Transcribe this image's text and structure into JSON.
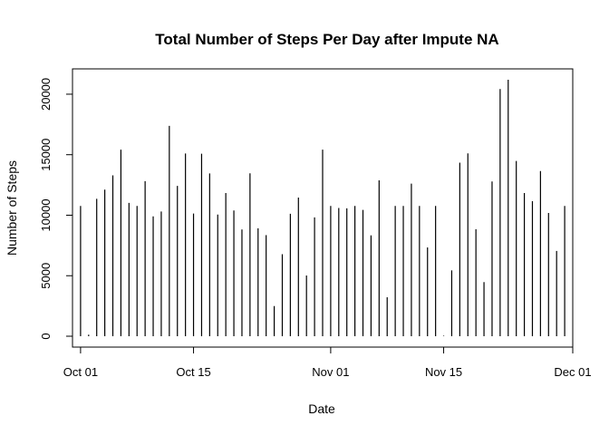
{
  "chart_data": {
    "type": "bar",
    "style": "histogram-lines",
    "title": "Total Number of Steps Per Day after Impute NA",
    "xlabel": "Date",
    "ylabel": "Number of Steps",
    "xlim": [
      "2012-09-30",
      "2012-12-01"
    ],
    "ylim": [
      0,
      21194
    ],
    "x_ticks": [
      {
        "date": "2012-10-01",
        "label": "Oct 01"
      },
      {
        "date": "2012-10-15",
        "label": "Oct 15"
      },
      {
        "date": "2012-11-01",
        "label": "Nov 01"
      },
      {
        "date": "2012-11-15",
        "label": "Nov 15"
      },
      {
        "date": "2012-12-01",
        "label": "Dec 01"
      }
    ],
    "y_ticks": [
      0,
      5000,
      10000,
      15000,
      20000
    ],
    "line_color": "#000000",
    "dates": [
      "2012-10-01",
      "2012-10-02",
      "2012-10-03",
      "2012-10-04",
      "2012-10-05",
      "2012-10-06",
      "2012-10-07",
      "2012-10-08",
      "2012-10-09",
      "2012-10-10",
      "2012-10-11",
      "2012-10-12",
      "2012-10-13",
      "2012-10-14",
      "2012-10-15",
      "2012-10-16",
      "2012-10-17",
      "2012-10-18",
      "2012-10-19",
      "2012-10-20",
      "2012-10-21",
      "2012-10-22",
      "2012-10-23",
      "2012-10-24",
      "2012-10-25",
      "2012-10-26",
      "2012-10-27",
      "2012-10-28",
      "2012-10-29",
      "2012-10-30",
      "2012-10-31",
      "2012-11-01",
      "2012-11-02",
      "2012-11-03",
      "2012-11-04",
      "2012-11-05",
      "2012-11-06",
      "2012-11-07",
      "2012-11-08",
      "2012-11-09",
      "2012-11-10",
      "2012-11-11",
      "2012-11-12",
      "2012-11-13",
      "2012-11-14",
      "2012-11-15",
      "2012-11-16",
      "2012-11-17",
      "2012-11-18",
      "2012-11-19",
      "2012-11-20",
      "2012-11-21",
      "2012-11-22",
      "2012-11-23",
      "2012-11-24",
      "2012-11-25",
      "2012-11-26",
      "2012-11-27",
      "2012-11-28",
      "2012-11-29",
      "2012-11-30"
    ],
    "values": [
      10766,
      126,
      11352,
      12116,
      13294,
      15420,
      11015,
      10766,
      12811,
      9900,
      10304,
      17382,
      12426,
      15098,
      10139,
      15084,
      13452,
      10056,
      11829,
      10395,
      8821,
      13460,
      8918,
      8355,
      2492,
      6778,
      10119,
      11458,
      5018,
      9819,
      15414,
      10766,
      10600,
      10571,
      10766,
      10439,
      8334,
      12883,
      3219,
      10766,
      10766,
      12608,
      10765,
      7336,
      10766,
      41,
      5441,
      14339,
      15110,
      8841,
      4472,
      12787,
      20427,
      21194,
      14478,
      11834,
      11162,
      13646,
      10183,
      7047,
      10766
    ]
  }
}
